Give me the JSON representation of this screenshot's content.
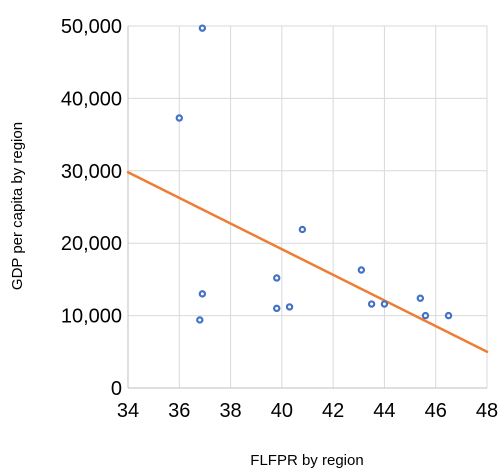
{
  "chart_data": {
    "type": "scatter",
    "title": "",
    "xlabel": "FLFPR by region",
    "ylabel": "GDP per capita by region",
    "xlim": [
      34,
      48
    ],
    "ylim": [
      0,
      50000
    ],
    "x_ticks": [
      34,
      36,
      38,
      40,
      42,
      44,
      46,
      48
    ],
    "x_tick_labels": [
      "34",
      "36",
      "38",
      "40",
      "42",
      "44",
      "46",
      "48"
    ],
    "y_ticks": [
      0,
      10000,
      20000,
      30000,
      40000,
      50000
    ],
    "y_tick_labels": [
      "0",
      "10,000",
      "20,000",
      "30,000",
      "40,000",
      "50,000"
    ],
    "grid": true,
    "legend": "none",
    "series": [
      {
        "type": "scatter",
        "color": "#4472c4",
        "points": [
          {
            "x": 36.0,
            "y": 37300
          },
          {
            "x": 36.9,
            "y": 49700
          },
          {
            "x": 36.9,
            "y": 13000
          },
          {
            "x": 36.8,
            "y": 9400
          },
          {
            "x": 39.8,
            "y": 15200
          },
          {
            "x": 39.8,
            "y": 11000
          },
          {
            "x": 40.3,
            "y": 11200
          },
          {
            "x": 40.8,
            "y": 21900
          },
          {
            "x": 43.1,
            "y": 16300
          },
          {
            "x": 43.5,
            "y": 11600
          },
          {
            "x": 44.0,
            "y": 11600
          },
          {
            "x": 45.4,
            "y": 12400
          },
          {
            "x": 45.6,
            "y": 10000
          },
          {
            "x": 46.5,
            "y": 10000
          }
        ]
      },
      {
        "type": "trendline",
        "color": "#ed7d31",
        "points": [
          {
            "x": 34,
            "y": 29800
          },
          {
            "x": 48,
            "y": 5000
          }
        ]
      }
    ]
  }
}
